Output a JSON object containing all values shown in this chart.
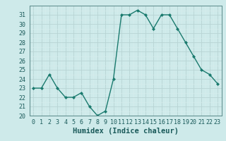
{
  "x": [
    0,
    1,
    2,
    3,
    4,
    5,
    6,
    7,
    8,
    9,
    10,
    11,
    12,
    13,
    14,
    15,
    16,
    17,
    18,
    19,
    20,
    21,
    22,
    23
  ],
  "y": [
    23,
    23,
    24.5,
    23,
    22,
    22,
    22.5,
    21,
    20,
    20.5,
    24,
    31,
    31,
    31.5,
    31,
    29.5,
    31,
    31,
    29.5,
    28,
    26.5,
    25,
    24.5,
    23.5
  ],
  "line_color": "#1a7a6e",
  "marker": "D",
  "marker_size": 2.0,
  "bg_color": "#ceeaea",
  "grid_major_color": "#b8d4d4",
  "grid_minor_color": "#d8ecec",
  "xlabel": "Humidex (Indice chaleur)",
  "ylim": [
    20,
    32
  ],
  "xlim": [
    -0.5,
    23.5
  ],
  "yticks": [
    20,
    21,
    22,
    23,
    24,
    25,
    26,
    27,
    28,
    29,
    30,
    31
  ],
  "xticks": [
    0,
    1,
    2,
    3,
    4,
    5,
    6,
    7,
    8,
    9,
    10,
    11,
    12,
    13,
    14,
    15,
    16,
    17,
    18,
    19,
    20,
    21,
    22,
    23
  ],
  "xlabel_fontsize": 7.5,
  "tick_fontsize": 6.0,
  "line_width": 1.0
}
